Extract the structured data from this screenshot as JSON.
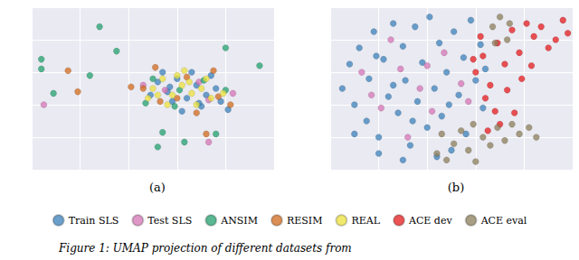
{
  "chart_data": [
    {
      "type": "scatter",
      "title": "(a)",
      "xlim": [
        0,
        10
      ],
      "ylim": [
        0,
        10
      ],
      "xticks": [
        0,
        2,
        4,
        6,
        8,
        10
      ],
      "yticks": [
        0,
        2,
        4,
        6,
        8,
        10
      ],
      "grid": true,
      "tick_labels": false,
      "legend": "bottom",
      "marker": "circle",
      "series": [
        {
          "name": "Train SLS",
          "color": "#3b80b9",
          "values": [
            [
              5.2,
              5.4
            ],
            [
              5.6,
              4.8
            ],
            [
              6.0,
              5.6
            ],
            [
              6.4,
              4.4
            ],
            [
              6.8,
              5.2
            ],
            [
              7.2,
              4.6
            ],
            [
              7.6,
              5.0
            ],
            [
              5.8,
              4.2
            ],
            [
              6.6,
              6.0
            ],
            [
              7.0,
              3.9
            ],
            [
              5.4,
              6.0
            ],
            [
              7.8,
              4.2
            ],
            [
              8.1,
              3.7
            ],
            [
              6.2,
              3.6
            ],
            [
              4.9,
              4.6
            ],
            [
              7.4,
              5.8
            ],
            [
              6.9,
              4.1
            ],
            [
              5.7,
              5.1
            ]
          ]
        },
        {
          "name": "Test SLS",
          "color": "#d474b5",
          "values": [
            [
              5.5,
              4.9
            ],
            [
              6.9,
              5.4
            ],
            [
              7.3,
              4.3
            ],
            [
              0.5,
              4.0
            ],
            [
              8.3,
              4.7
            ],
            [
              7.3,
              1.7
            ],
            [
              4.6,
              5.2
            ]
          ]
        },
        {
          "name": "ANSIM",
          "color": "#22a06e",
          "values": [
            [
              0.4,
              6.8
            ],
            [
              0.4,
              6.2
            ],
            [
              0.9,
              4.7
            ],
            [
              3.5,
              7.3
            ],
            [
              2.8,
              8.8
            ],
            [
              2.4,
              5.8
            ],
            [
              5.4,
              2.3
            ],
            [
              5.2,
              1.4
            ],
            [
              9.4,
              6.4
            ],
            [
              8.0,
              7.5
            ],
            [
              7.6,
              2.2
            ],
            [
              6.3,
              1.7
            ],
            [
              5.0,
              5.6
            ],
            [
              6.1,
              4.9
            ],
            [
              7.1,
              5.5
            ],
            [
              5.9,
              3.9
            ],
            [
              8.0,
              4.9
            ],
            [
              4.7,
              4.1
            ]
          ]
        },
        {
          "name": "RESIM",
          "color": "#d0691c",
          "values": [
            [
              1.5,
              6.1
            ],
            [
              1.9,
              4.8
            ],
            [
              4.1,
              5.1
            ],
            [
              7.2,
              2.2
            ],
            [
              4.6,
              5.0
            ],
            [
              5.3,
              4.2
            ],
            [
              6.4,
              5.7
            ],
            [
              7.7,
              4.5
            ],
            [
              8.2,
              4.0
            ],
            [
              6.8,
              3.5
            ],
            [
              5.1,
              6.3
            ],
            [
              7.5,
              6.1
            ],
            [
              6.0,
              4.4
            ]
          ]
        },
        {
          "name": "REAL",
          "color": "#ece13c",
          "values": [
            [
              5.0,
              5.0
            ],
            [
              5.4,
              5.6
            ],
            [
              5.8,
              4.6
            ],
            [
              6.2,
              5.2
            ],
            [
              6.6,
              4.7
            ],
            [
              7.0,
              5.0
            ],
            [
              7.4,
              4.4
            ],
            [
              5.6,
              4.0
            ],
            [
              6.3,
              6.1
            ],
            [
              4.8,
              4.4
            ],
            [
              6.0,
              5.8
            ],
            [
              7.2,
              5.6
            ],
            [
              6.8,
              4.0
            ],
            [
              5.2,
              4.6
            ],
            [
              7.9,
              4.7
            ],
            [
              6.5,
              5.4
            ]
          ]
        }
      ]
    },
    {
      "type": "scatter",
      "title": "(b)",
      "xlim": [
        0,
        10
      ],
      "ylim": [
        0,
        10
      ],
      "xticks": [
        0,
        2,
        4,
        6,
        8,
        10
      ],
      "yticks": [
        0,
        2,
        4,
        6,
        8,
        10
      ],
      "grid": true,
      "tick_labels": false,
      "legend": "bottom",
      "marker": "circle",
      "series": [
        {
          "name": "Train SLS",
          "color": "#3b80b9",
          "values": [
            [
              0.5,
              5.0
            ],
            [
              0.8,
              6.5
            ],
            [
              1.0,
              4.0
            ],
            [
              1.2,
              7.5
            ],
            [
              1.5,
              3.0
            ],
            [
              1.6,
              5.6
            ],
            [
              1.8,
              8.5
            ],
            [
              2.0,
              2.0
            ],
            [
              2.2,
              6.8
            ],
            [
              2.4,
              4.5
            ],
            [
              2.6,
              9.0
            ],
            [
              2.8,
              3.5
            ],
            [
              3.0,
              7.6
            ],
            [
              3.1,
              5.5
            ],
            [
              3.3,
              1.5
            ],
            [
              3.5,
              8.8
            ],
            [
              3.6,
              4.2
            ],
            [
              3.8,
              6.6
            ],
            [
              4.0,
              2.6
            ],
            [
              4.1,
              9.4
            ],
            [
              4.3,
              5.0
            ],
            [
              4.5,
              7.8
            ],
            [
              4.6,
              3.3
            ],
            [
              4.8,
              6.0
            ],
            [
              5.0,
              1.2
            ],
            [
              5.1,
              8.5
            ],
            [
              5.3,
              4.6
            ],
            [
              5.5,
              6.9
            ],
            [
              5.6,
              2.2
            ],
            [
              5.8,
              9.2
            ],
            [
              6.0,
              5.5
            ],
            [
              6.2,
              7.7
            ],
            [
              6.3,
              3.8
            ],
            [
              2.0,
              1.0
            ],
            [
              1.0,
              2.2
            ],
            [
              3.0,
              0.6
            ],
            [
              4.4,
              0.8
            ],
            [
              6.4,
              6.2
            ],
            [
              3.4,
              3.0
            ],
            [
              2.6,
              5.2
            ],
            [
              1.9,
              7.0
            ],
            [
              4.9,
              4.0
            ]
          ]
        },
        {
          "name": "Test SLS",
          "color": "#d474b5",
          "values": [
            [
              1.3,
              6.0
            ],
            [
              2.1,
              3.8
            ],
            [
              2.9,
              6.2
            ],
            [
              3.7,
              5.0
            ],
            [
              4.2,
              3.6
            ],
            [
              4.7,
              7.2
            ],
            [
              5.4,
              5.3
            ],
            [
              3.2,
              2.0
            ],
            [
              2.5,
              8.0
            ],
            [
              5.7,
              4.2
            ],
            [
              1.7,
              4.6
            ],
            [
              4.0,
              6.4
            ]
          ]
        },
        {
          "name": "ACE dev",
          "color": "#e41a1c",
          "values": [
            [
              6.0,
              6.0
            ],
            [
              6.3,
              7.0
            ],
            [
              6.6,
              5.2
            ],
            [
              6.9,
              7.8
            ],
            [
              7.2,
              6.5
            ],
            [
              7.5,
              8.6
            ],
            [
              7.8,
              7.2
            ],
            [
              8.1,
              9.0
            ],
            [
              8.4,
              8.2
            ],
            [
              8.7,
              8.8
            ],
            [
              9.0,
              7.5
            ],
            [
              9.3,
              8.0
            ],
            [
              9.6,
              9.2
            ],
            [
              9.8,
              8.4
            ],
            [
              6.4,
              4.4
            ],
            [
              6.8,
              3.6
            ],
            [
              7.0,
              2.8
            ],
            [
              7.3,
              4.9
            ],
            [
              7.6,
              3.5
            ],
            [
              6.2,
              8.2
            ],
            [
              5.9,
              6.8
            ],
            [
              7.9,
              5.6
            ],
            [
              8.3,
              6.4
            ],
            [
              6.5,
              2.4
            ]
          ]
        },
        {
          "name": "ACE eval",
          "color": "#8b7d5a",
          "values": [
            [
              4.4,
              1.0
            ],
            [
              4.8,
              0.6
            ],
            [
              5.1,
              1.6
            ],
            [
              5.4,
              2.4
            ],
            [
              5.7,
              1.2
            ],
            [
              6.0,
              0.5
            ],
            [
              6.3,
              2.0
            ],
            [
              6.6,
              1.5
            ],
            [
              6.9,
              2.6
            ],
            [
              7.2,
              1.8
            ],
            [
              7.5,
              2.8
            ],
            [
              7.8,
              2.2
            ],
            [
              8.2,
              2.6
            ],
            [
              8.5,
              2.0
            ],
            [
              4.6,
              2.2
            ],
            [
              5.9,
              2.8
            ],
            [
              6.7,
              8.8
            ],
            [
              7.0,
              9.4
            ],
            [
              7.3,
              8.0
            ],
            [
              6.8,
              7.8
            ],
            [
              7.4,
              9.0
            ]
          ]
        }
      ]
    }
  ],
  "caption": "Figure 1: UMAP projection of different datasets from"
}
